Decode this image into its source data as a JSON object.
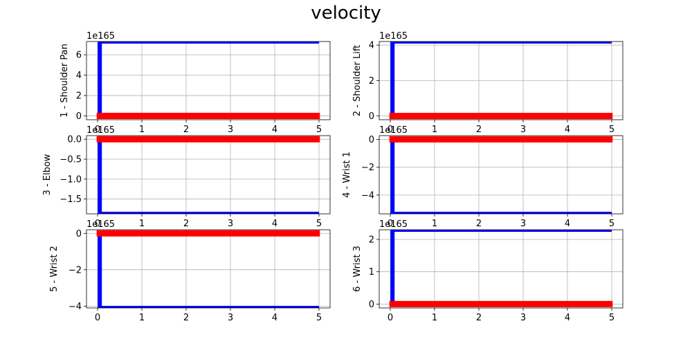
{
  "title": "velocity",
  "colors": {
    "series_a": "#0000ff",
    "series_b": "#ff0000",
    "grid": "#b0b0b0"
  },
  "chart_data": [
    {
      "type": "line",
      "ylabel": "1 - Shoulder Pan",
      "offset_text": "1e165",
      "xlim": [
        -0.25,
        5.25
      ],
      "ylim": [
        -0.37,
        7.3
      ],
      "xticks": [
        0,
        1,
        2,
        3,
        4,
        5
      ],
      "yticks": [
        0,
        2,
        4,
        6
      ],
      "series": [
        {
          "x": [
            0,
            0.05,
            0.05,
            5.0
          ],
          "y": [
            0,
            0,
            7.3,
            7.3
          ]
        },
        {
          "x": [
            -0.02,
            5.02
          ],
          "y": [
            0,
            0
          ]
        }
      ]
    },
    {
      "type": "line",
      "ylabel": "2 - Shoulder Lift",
      "offset_text": "1e165",
      "xlim": [
        -0.25,
        5.25
      ],
      "ylim": [
        -0.21,
        4.2
      ],
      "xticks": [
        0,
        1,
        2,
        3,
        4,
        5
      ],
      "yticks": [
        0,
        2,
        4
      ],
      "series": [
        {
          "x": [
            0,
            0.05,
            0.05,
            5.0
          ],
          "y": [
            0,
            0,
            4.2,
            4.2
          ]
        },
        {
          "x": [
            -0.02,
            5.02
          ],
          "y": [
            0,
            0
          ]
        }
      ]
    },
    {
      "type": "line",
      "ylabel": "3 - Elbow",
      "offset_text": "1e165",
      "xlim": [
        -0.25,
        5.25
      ],
      "ylim": [
        -1.87,
        0.09
      ],
      "xticks": [
        0,
        1,
        2,
        3,
        4,
        5
      ],
      "yticks": [
        0.0,
        -0.5,
        -1.0,
        -1.5
      ],
      "ytick_labels": [
        "0.0",
        "−0.5",
        "−1.0",
        "−1.5"
      ],
      "series": [
        {
          "x": [
            0,
            0.05,
            0.05,
            5.0
          ],
          "y": [
            0,
            0,
            -1.87,
            -1.87
          ]
        },
        {
          "x": [
            -0.02,
            5.02
          ],
          "y": [
            0,
            0
          ]
        }
      ]
    },
    {
      "type": "line",
      "ylabel": "4 - Wrist 1",
      "offset_text": "1e165",
      "xlim": [
        -0.25,
        5.25
      ],
      "ylim": [
        -5.35,
        0.27
      ],
      "xticks": [
        0,
        1,
        2,
        3,
        4,
        5
      ],
      "yticks": [
        0,
        -2,
        -4
      ],
      "ytick_labels": [
        "0",
        "−2",
        "−4"
      ],
      "series": [
        {
          "x": [
            0,
            0.05,
            0.05,
            5.0
          ],
          "y": [
            0,
            0,
            -5.35,
            -5.35
          ]
        },
        {
          "x": [
            -0.02,
            5.02
          ],
          "y": [
            0,
            0
          ]
        }
      ]
    },
    {
      "type": "line",
      "ylabel": "5 - Wrist 2",
      "offset_text": "1e165",
      "xlim": [
        -0.25,
        5.25
      ],
      "ylim": [
        -4.1,
        0.2
      ],
      "xticks": [
        0,
        1,
        2,
        3,
        4,
        5
      ],
      "yticks": [
        0,
        -2,
        -4
      ],
      "ytick_labels": [
        "0",
        "−2",
        "−4"
      ],
      "series": [
        {
          "x": [
            0,
            0.05,
            0.05,
            5.0
          ],
          "y": [
            0,
            0,
            -4.1,
            -4.1
          ]
        },
        {
          "x": [
            -0.02,
            5.02
          ],
          "y": [
            0,
            0
          ]
        }
      ]
    },
    {
      "type": "line",
      "ylabel": "6 - Wrist 3",
      "offset_text": "1e165",
      "xlim": [
        -0.25,
        5.25
      ],
      "ylim": [
        -0.12,
        2.3
      ],
      "xticks": [
        0,
        1,
        2,
        3,
        4,
        5
      ],
      "yticks": [
        0,
        1,
        2
      ],
      "series": [
        {
          "x": [
            0,
            0.05,
            0.05,
            5.0
          ],
          "y": [
            0,
            0,
            2.3,
            2.3
          ]
        },
        {
          "x": [
            -0.02,
            5.02
          ],
          "y": [
            0,
            0
          ]
        }
      ]
    }
  ]
}
